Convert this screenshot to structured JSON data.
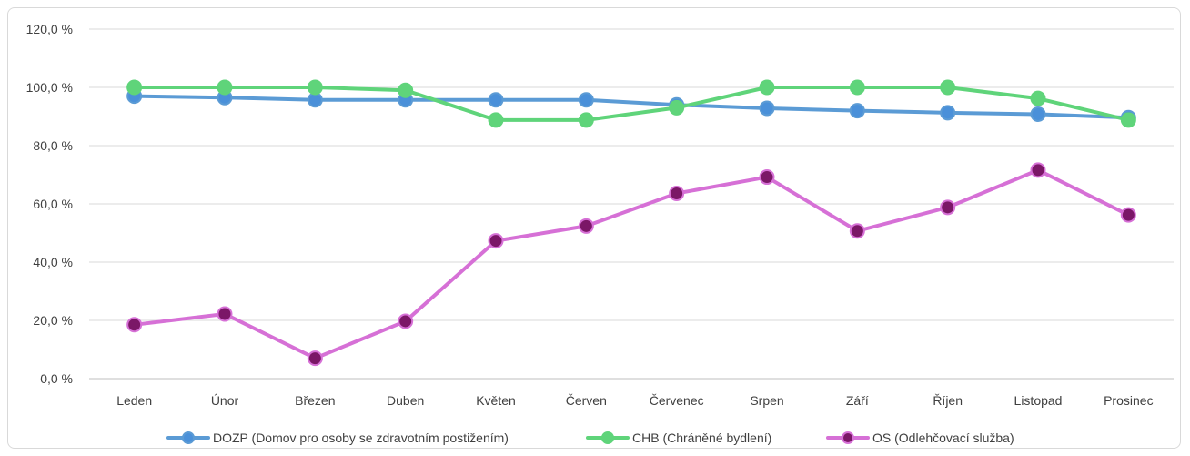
{
  "chart_data": {
    "type": "line",
    "title": "",
    "xlabel": "",
    "ylabel": "",
    "categories": [
      "Leden",
      "Únor",
      "Březen",
      "Duben",
      "Květen",
      "Červen",
      "Červenec",
      "Srpen",
      "Září",
      "Říjen",
      "Listopad",
      "Prosinec"
    ],
    "ylim": [
      0,
      120
    ],
    "yticks": [
      "0,0 %",
      "20,0 %",
      "40,0 %",
      "60,0 %",
      "80,0 %",
      "100,0 %",
      "120,0 %"
    ],
    "ytick_values": [
      0,
      20,
      40,
      60,
      80,
      100,
      120
    ],
    "grid": true,
    "legend_position": "bottom",
    "series": [
      {
        "name": "DOZP (Domov pro osoby se zdravotním postižením)",
        "color": "#5b9bd5",
        "marker_color": "#4a90d9",
        "values": [
          97,
          96.5,
          95.7,
          95.7,
          95.7,
          95.7,
          94,
          92.8,
          92,
          91.3,
          90.8,
          89.6
        ]
      },
      {
        "name": "CHB (Chráněné bydlení)",
        "color": "#5fd47a",
        "marker_color": "#5fd47a",
        "values": [
          100,
          100,
          100,
          99,
          88.8,
          88.8,
          93,
          100,
          100,
          100,
          96.2,
          88.8
        ]
      },
      {
        "name": "OS (Odlehčovací služba)",
        "color": "#d670d6",
        "marker_color": "#7b1767",
        "values": [
          18.5,
          22.2,
          7,
          19.7,
          47.3,
          52.4,
          63.6,
          69.2,
          50.7,
          58.8,
          71.6,
          56.2
        ]
      }
    ]
  }
}
